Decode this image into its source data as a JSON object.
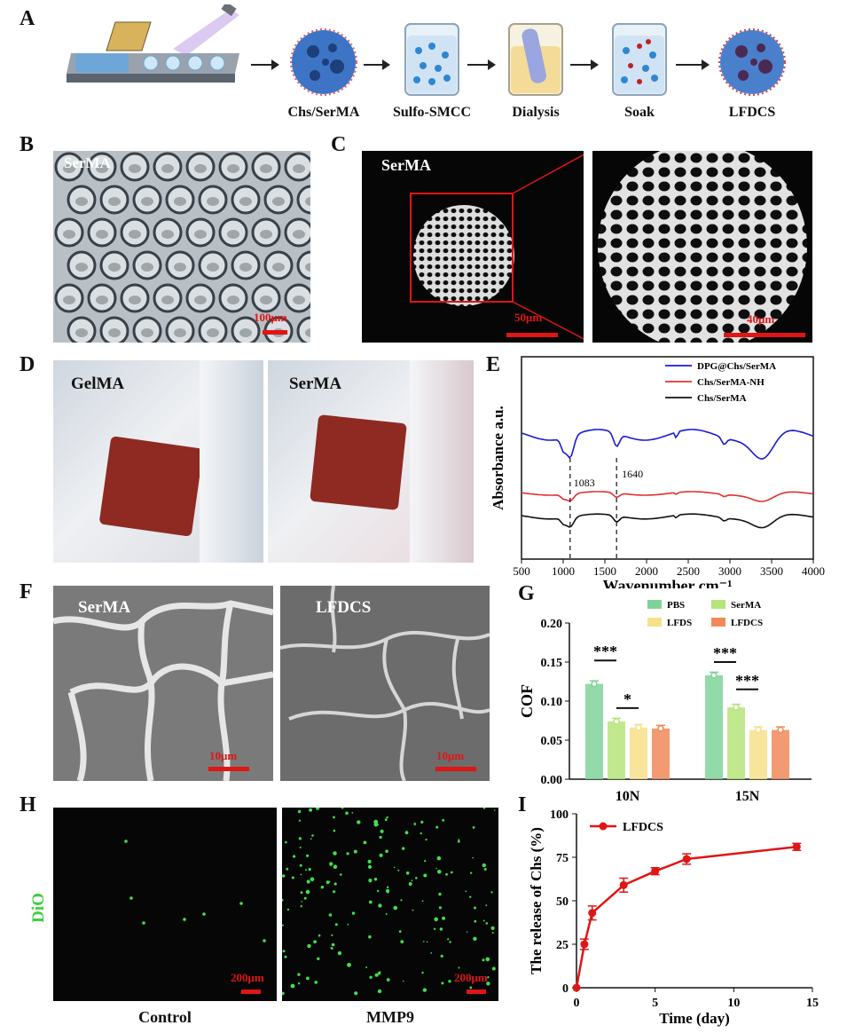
{
  "panels": {
    "A": "A",
    "B": "B",
    "C": "C",
    "D": "D",
    "E": "E",
    "F": "F",
    "G": "G",
    "H": "H",
    "I": "I"
  },
  "panelA": {
    "steps": [
      "Chs/SerMA",
      "Sulfo-SMCC",
      "Dialysis",
      "Soak",
      "LFDCS"
    ]
  },
  "panelB": {
    "label": "SerMA",
    "scale": "100μm"
  },
  "panelC": {
    "label": "SerMA",
    "scale_left": "50μm",
    "scale_right": "40μm"
  },
  "panelD": {
    "left_label": "GelMA",
    "right_label": "SerMA"
  },
  "panelF": {
    "left_label": "SerMA",
    "right_label": "LFDCS",
    "scale_left": "10μm",
    "scale_right": "10μm"
  },
  "panelH": {
    "ylabel": "DiO",
    "left_caption": "Control",
    "right_caption": "MMP9",
    "scale_left": "200μm",
    "scale_right": "200μm"
  },
  "chart_data": [
    {
      "id": "E",
      "type": "line",
      "xlabel": "Wavenumber cm⁻¹",
      "ylabel": "Absorbance a.u.",
      "xlim": [
        500,
        4000
      ],
      "xticks": [
        500,
        1000,
        1500,
        2000,
        2500,
        3000,
        3500,
        4000
      ],
      "annotations": [
        "1083",
        "1640"
      ],
      "annotation_x": [
        1083,
        1640
      ],
      "legend_position": "top-right",
      "series": [
        {
          "name": "DPG@Chs/SerMA",
          "color": "#1a1ad6"
        },
        {
          "name": "Chs/SerMA-NH",
          "color": "#e03030"
        },
        {
          "name": "Chs/SerMA",
          "color": "#111111"
        }
      ]
    },
    {
      "id": "G",
      "type": "bar",
      "ylabel": "COF",
      "ylim": [
        0,
        0.2
      ],
      "yticks": [
        "0.00",
        "0.05",
        "0.10",
        "0.15",
        "0.20"
      ],
      "categories": [
        "10N",
        "15N"
      ],
      "legend_position": "top",
      "series": [
        {
          "name": "PBS",
          "color": "#7fd39a",
          "values": [
            0.122,
            0.133
          ]
        },
        {
          "name": "SerMA",
          "color": "#b6e47a",
          "values": [
            0.074,
            0.092
          ]
        },
        {
          "name": "LFDS",
          "color": "#f7e08a",
          "values": [
            0.066,
            0.063
          ]
        },
        {
          "name": "LFDCS",
          "color": "#f08a5a",
          "values": [
            0.065,
            0.063
          ]
        }
      ],
      "significance": [
        {
          "category": "10N",
          "label": "***",
          "level": 0.152
        },
        {
          "category": "10N",
          "label": "*",
          "level": 0.091
        },
        {
          "category": "15N",
          "label": "***",
          "level": 0.15
        },
        {
          "category": "15N",
          "label": "***",
          "level": 0.115
        }
      ]
    },
    {
      "id": "I",
      "type": "line",
      "xlabel": "Time (day)",
      "ylabel": "The release of Chs (%)",
      "xlim": [
        0,
        15
      ],
      "ylim": [
        0,
        100
      ],
      "xticks": [
        0,
        5,
        10,
        15
      ],
      "yticks": [
        0,
        25,
        50,
        75,
        100
      ],
      "legend_position": "top-left",
      "series": [
        {
          "name": "LFDCS",
          "color": "#e01515",
          "x": [
            0,
            0.5,
            1,
            3,
            5,
            7,
            14
          ],
          "y": [
            0,
            25,
            43,
            59,
            67,
            74,
            81
          ],
          "err": [
            0,
            3,
            4,
            4,
            2,
            3,
            2
          ]
        }
      ]
    }
  ]
}
